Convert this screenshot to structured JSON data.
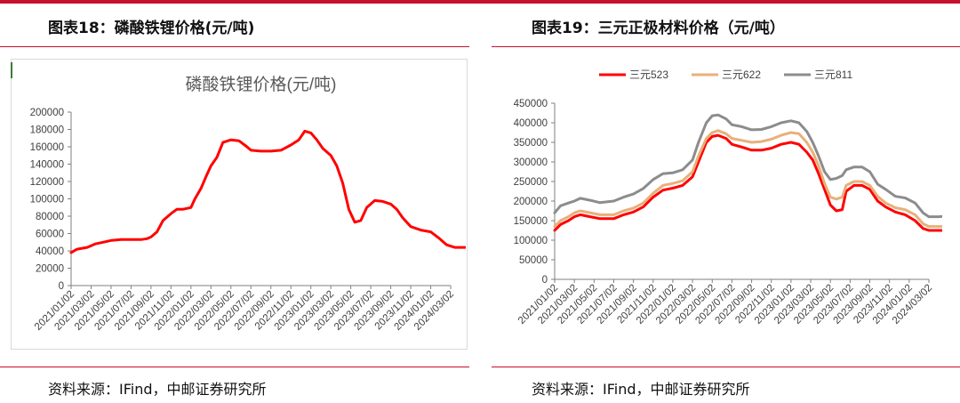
{
  "panels": {
    "left_caption": "图表18：磷酸铁锂价格(元/吨)",
    "right_caption": "图表19：三元正极材料价格（元/吨）",
    "left_source": "资料来源：IFind，中邮证券研究所",
    "right_source": "资料来源：IFind，中邮证券研究所"
  },
  "colors": {
    "accent": "#c8102e",
    "lfp": "#ff0000",
    "ncm523": "#ff0000",
    "ncm622": "#e8b07a",
    "ncm811": "#8c8c8c"
  },
  "chart_data": [
    {
      "type": "line",
      "title": "磷酸铁锂价格(元/吨)",
      "ylim": [
        0,
        200000
      ],
      "yticks": [
        "0",
        "20000",
        "40000",
        "60000",
        "80000",
        "100000",
        "120000",
        "140000",
        "160000",
        "180000",
        "200000"
      ],
      "categories": [
        "2021/01/02",
        "2021/03/02",
        "2021/05/02",
        "2021/07/02",
        "2021/09/02",
        "2021/11/02",
        "2022/01/02",
        "2022/03/02",
        "2022/05/02",
        "2022/07/02",
        "2022/09/02",
        "2022/11/02",
        "2023/01/02",
        "2023/03/02",
        "2023/05/02",
        "2023/07/02",
        "2023/09/02",
        "2023/11/02",
        "2024/01/02",
        "2024/03/02"
      ],
      "grid": false,
      "legend": "none",
      "series": [
        {
          "values": [
            [
              0,
              38000
            ],
            [
              0.3,
              42000
            ],
            [
              0.8,
              44000
            ],
            [
              1,
              46000
            ],
            [
              1.2,
              48000
            ],
            [
              1.6,
              50000
            ],
            [
              2,
              52000
            ],
            [
              2.5,
              53000
            ],
            [
              3,
              53000
            ],
            [
              3.5,
              53000
            ],
            [
              3.8,
              54000
            ],
            [
              4,
              56000
            ],
            [
              4.3,
              62000
            ],
            [
              4.6,
              75000
            ],
            [
              5,
              83000
            ],
            [
              5.3,
              88000
            ],
            [
              5.6,
              88000
            ],
            [
              6,
              90000
            ],
            [
              6.2,
              100000
            ],
            [
              6.5,
              112000
            ],
            [
              6.8,
              128000
            ],
            [
              7,
              138000
            ],
            [
              7.3,
              148000
            ],
            [
              7.6,
              165000
            ],
            [
              8,
              168000
            ],
            [
              8.4,
              167000
            ],
            [
              8.8,
              160000
            ],
            [
              9,
              156000
            ],
            [
              9.5,
              155000
            ],
            [
              10,
              155000
            ],
            [
              10.5,
              156000
            ],
            [
              11,
              162000
            ],
            [
              11.4,
              168000
            ],
            [
              11.7,
              178000
            ],
            [
              12,
              176000
            ],
            [
              12.3,
              168000
            ],
            [
              12.6,
              158000
            ],
            [
              13,
              150000
            ],
            [
              13.3,
              138000
            ],
            [
              13.6,
              118000
            ],
            [
              13.9,
              88000
            ],
            [
              14.2,
              73000
            ],
            [
              14.5,
              75000
            ],
            [
              14.8,
              90000
            ],
            [
              15.2,
              98000
            ],
            [
              15.6,
              97000
            ],
            [
              16,
              94000
            ],
            [
              16.3,
              88000
            ],
            [
              16.6,
              78000
            ],
            [
              17,
              68000
            ],
            [
              17.5,
              64000
            ],
            [
              18,
              62000
            ],
            [
              18.4,
              55000
            ],
            [
              18.8,
              47000
            ],
            [
              19.2,
              44000
            ],
            [
              19.6,
              44000
            ],
            [
              20,
              44000
            ]
          ]
        }
      ]
    },
    {
      "type": "line",
      "title": "",
      "ylim": [
        0,
        450000
      ],
      "yticks": [
        "0",
        "50000",
        "100000",
        "150000",
        "200000",
        "250000",
        "300000",
        "350000",
        "400000",
        "450000"
      ],
      "categories": [
        "2021/01/02",
        "2021/03/02",
        "2021/05/02",
        "2021/07/02",
        "2021/09/02",
        "2021/11/02",
        "2022/01/02",
        "2022/03/02",
        "2022/05/02",
        "2022/07/02",
        "2022/09/02",
        "2022/11/02",
        "2023/01/02",
        "2023/03/02",
        "2023/05/02",
        "2023/07/02",
        "2023/09/02",
        "2023/11/02",
        "2024/01/02",
        "2024/03/02"
      ],
      "grid": false,
      "legend": "top",
      "series": [
        {
          "name": "三元523",
          "values": [
            [
              0,
              125000
            ],
            [
              0.3,
              140000
            ],
            [
              0.7,
              150000
            ],
            [
              1,
              160000
            ],
            [
              1.3,
              165000
            ],
            [
              1.8,
              160000
            ],
            [
              2.3,
              155000
            ],
            [
              3,
              155000
            ],
            [
              3.5,
              165000
            ],
            [
              4,
              172000
            ],
            [
              4.5,
              185000
            ],
            [
              5,
              210000
            ],
            [
              5.5,
              228000
            ],
            [
              6,
              233000
            ],
            [
              6.5,
              240000
            ],
            [
              7,
              262000
            ],
            [
              7.3,
              300000
            ],
            [
              7.7,
              350000
            ],
            [
              8,
              365000
            ],
            [
              8.3,
              368000
            ],
            [
              8.7,
              360000
            ],
            [
              9,
              345000
            ],
            [
              9.5,
              338000
            ],
            [
              10,
              330000
            ],
            [
              10.5,
              330000
            ],
            [
              11,
              335000
            ],
            [
              11.5,
              345000
            ],
            [
              12,
              350000
            ],
            [
              12.4,
              345000
            ],
            [
              12.8,
              325000
            ],
            [
              13.1,
              305000
            ],
            [
              13.4,
              270000
            ],
            [
              13.7,
              230000
            ],
            [
              14,
              190000
            ],
            [
              14.3,
              175000
            ],
            [
              14.6,
              178000
            ],
            [
              14.8,
              225000
            ],
            [
              15.2,
              240000
            ],
            [
              15.6,
              240000
            ],
            [
              16,
              230000
            ],
            [
              16.4,
              200000
            ],
            [
              16.8,
              185000
            ],
            [
              17.3,
              172000
            ],
            [
              17.8,
              165000
            ],
            [
              18.3,
              150000
            ],
            [
              18.7,
              130000
            ],
            [
              19,
              125000
            ],
            [
              19.5,
              125000
            ],
            [
              20,
              125000
            ]
          ]
        },
        {
          "name": "三元622",
          "values": [
            [
              0,
              135000
            ],
            [
              0.3,
              150000
            ],
            [
              0.7,
              160000
            ],
            [
              1,
              170000
            ],
            [
              1.3,
              175000
            ],
            [
              1.8,
              170000
            ],
            [
              2.3,
              165000
            ],
            [
              3,
              165000
            ],
            [
              3.5,
              175000
            ],
            [
              4,
              182000
            ],
            [
              4.5,
              195000
            ],
            [
              5,
              220000
            ],
            [
              5.5,
              240000
            ],
            [
              6,
              245000
            ],
            [
              6.5,
              252000
            ],
            [
              7,
              275000
            ],
            [
              7.3,
              315000
            ],
            [
              7.7,
              360000
            ],
            [
              8,
              375000
            ],
            [
              8.3,
              380000
            ],
            [
              8.7,
              372000
            ],
            [
              9,
              360000
            ],
            [
              9.5,
              355000
            ],
            [
              10,
              350000
            ],
            [
              10.5,
              352000
            ],
            [
              11,
              358000
            ],
            [
              11.5,
              368000
            ],
            [
              12,
              375000
            ],
            [
              12.4,
              372000
            ],
            [
              12.8,
              350000
            ],
            [
              13.1,
              325000
            ],
            [
              13.4,
              290000
            ],
            [
              13.7,
              245000
            ],
            [
              14,
              210000
            ],
            [
              14.3,
              205000
            ],
            [
              14.6,
              210000
            ],
            [
              14.8,
              240000
            ],
            [
              15.2,
              250000
            ],
            [
              15.6,
              250000
            ],
            [
              16,
              240000
            ],
            [
              16.4,
              212000
            ],
            [
              16.8,
              195000
            ],
            [
              17.3,
              183000
            ],
            [
              17.8,
              178000
            ],
            [
              18.3,
              165000
            ],
            [
              18.7,
              142000
            ],
            [
              19,
              135000
            ],
            [
              19.5,
              135000
            ],
            [
              20,
              135000
            ]
          ]
        },
        {
          "name": "三元811",
          "values": [
            [
              0,
              170000
            ],
            [
              0.3,
              188000
            ],
            [
              0.7,
              195000
            ],
            [
              1,
              200000
            ],
            [
              1.3,
              207000
            ],
            [
              1.8,
              202000
            ],
            [
              2.3,
              196000
            ],
            [
              3,
              200000
            ],
            [
              3.5,
              210000
            ],
            [
              4,
              218000
            ],
            [
              4.5,
              232000
            ],
            [
              5,
              255000
            ],
            [
              5.5,
              270000
            ],
            [
              6,
              272000
            ],
            [
              6.5,
              280000
            ],
            [
              7,
              305000
            ],
            [
              7.3,
              350000
            ],
            [
              7.7,
              400000
            ],
            [
              8,
              418000
            ],
            [
              8.3,
              420000
            ],
            [
              8.7,
              410000
            ],
            [
              9,
              395000
            ],
            [
              9.5,
              390000
            ],
            [
              10,
              382000
            ],
            [
              10.5,
              383000
            ],
            [
              11,
              390000
            ],
            [
              11.5,
              400000
            ],
            [
              12,
              405000
            ],
            [
              12.4,
              400000
            ],
            [
              12.8,
              378000
            ],
            [
              13.1,
              350000
            ],
            [
              13.4,
              315000
            ],
            [
              13.7,
              275000
            ],
            [
              14,
              255000
            ],
            [
              14.3,
              258000
            ],
            [
              14.6,
              265000
            ],
            [
              14.8,
              280000
            ],
            [
              15.2,
              287000
            ],
            [
              15.6,
              287000
            ],
            [
              16,
              275000
            ],
            [
              16.4,
              243000
            ],
            [
              16.8,
              230000
            ],
            [
              17.3,
              212000
            ],
            [
              17.8,
              208000
            ],
            [
              18.3,
              195000
            ],
            [
              18.7,
              170000
            ],
            [
              19,
              160000
            ],
            [
              19.5,
              160000
            ],
            [
              20,
              162000
            ]
          ]
        }
      ]
    }
  ]
}
